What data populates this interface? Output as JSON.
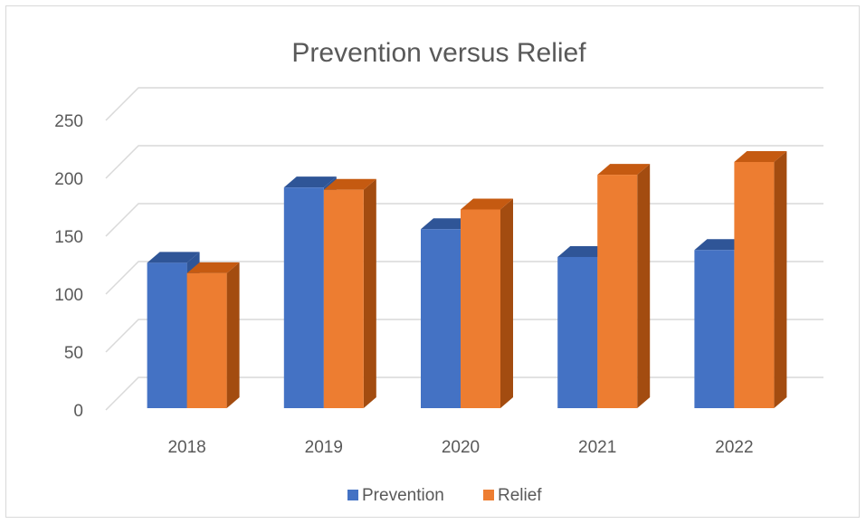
{
  "chart_data": {
    "type": "bar",
    "title": "Prevention versus Relief",
    "categories": [
      "2018",
      "2019",
      "2020",
      "2021",
      "2022"
    ],
    "series": [
      {
        "name": "Prevention",
        "values": [
          113,
          178,
          142,
          118,
          124
        ],
        "color": "#4472C4",
        "top_color": "#2F5597",
        "side_color": "#2F5597"
      },
      {
        "name": "Relief",
        "values": [
          104,
          176,
          159,
          189,
          200
        ],
        "color": "#ED7D31",
        "top_color": "#C55A11",
        "side_color": "#A34C10"
      }
    ],
    "ylim": [
      0,
      250
    ],
    "yticks": [
      "0",
      "50",
      "100",
      "150",
      "200",
      "250"
    ],
    "grid": true,
    "legend_position": "bottom",
    "gridline_color": "#d9d9d9"
  }
}
